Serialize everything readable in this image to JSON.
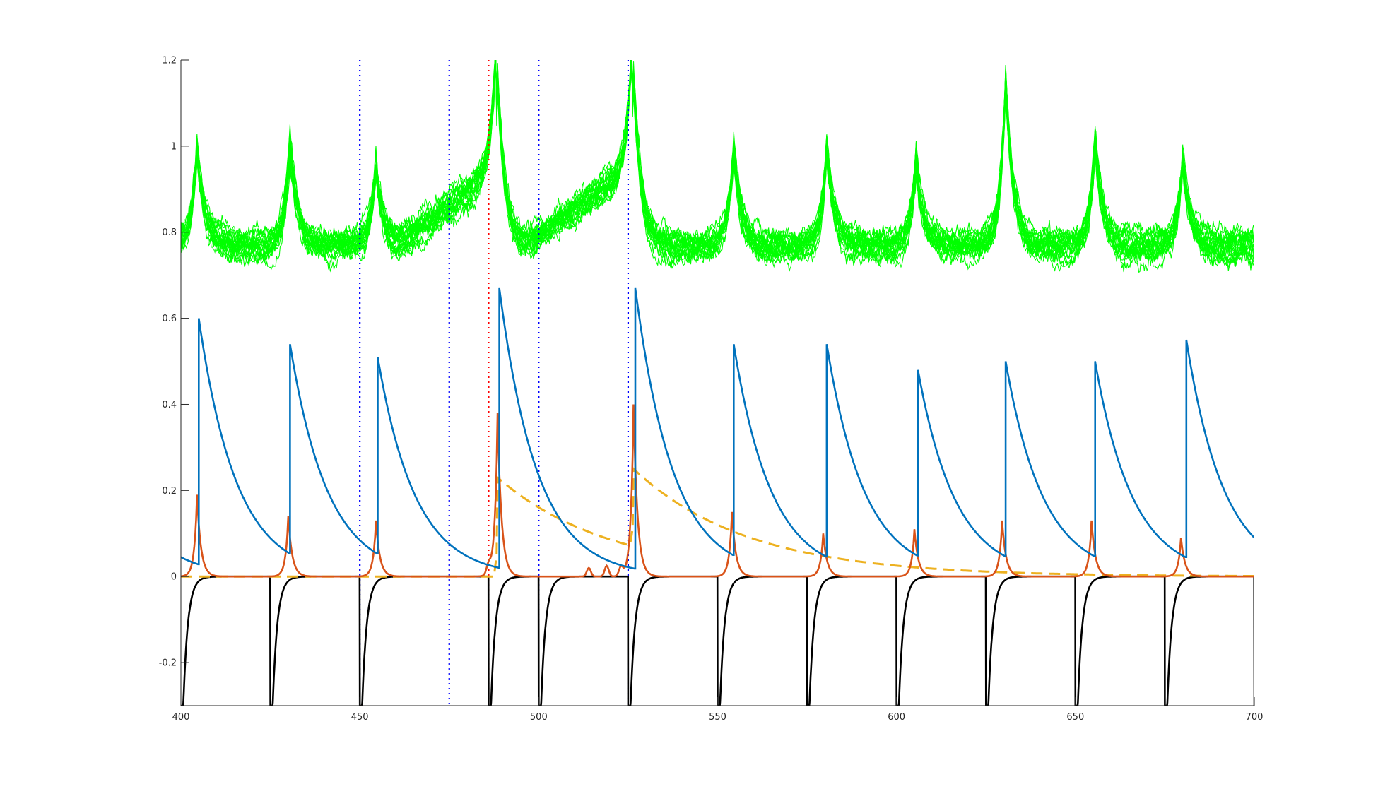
{
  "chart_data": {
    "type": "line",
    "title": "",
    "xlabel": "",
    "ylabel": "",
    "xlim": [
      400,
      700
    ],
    "ylim": [
      -0.3,
      1.2
    ],
    "grid": false,
    "legend": "none",
    "x_ticks": [
      400,
      450,
      500,
      550,
      600,
      650,
      700
    ],
    "x_tick_labels": [
      "400",
      "450",
      "500",
      "550",
      "600",
      "650",
      "700"
    ],
    "y_ticks": [
      -0.2,
      0,
      0.2,
      0.4,
      0.6,
      0.8,
      1,
      1.2
    ],
    "y_tick_labels": [
      "-0.2",
      "0",
      "0.2",
      "0.4",
      "0.6",
      "0.8",
      "1",
      "1.2"
    ],
    "colors": {
      "green": "#00ff00",
      "blue": "#0072bd",
      "orange": "#d95319",
      "yellow": "#edb120",
      "black": "#000000",
      "marker_blue": "#0000ff",
      "marker_red": "#ff0000"
    },
    "green_trace": {
      "baseline": 0.77,
      "peak_times": [
        404.5,
        430.5,
        454.5,
        488.5,
        526.5,
        554.5,
        580.5,
        605.5,
        630.5,
        655.5,
        680
      ],
      "peak_heights": [
        1.02,
        1.04,
        0.98,
        1.2,
        1.2,
        1.03,
        1.02,
        0.99,
        1.2,
        1.04,
        0.99
      ],
      "ramp_intervals": [
        [
          460,
          488
        ],
        [
          495,
          526
        ]
      ],
      "ramp_to": 0.94,
      "n_traces": 20
    },
    "blue_series": {
      "spikes": [
        [
          405,
          0.6
        ],
        [
          430.5,
          0.54
        ],
        [
          455,
          0.51
        ],
        [
          489,
          0.67
        ],
        [
          527,
          0.67
        ],
        [
          554.5,
          0.54
        ],
        [
          580.5,
          0.54
        ],
        [
          606,
          0.48
        ],
        [
          630.5,
          0.5
        ],
        [
          655.5,
          0.5
        ],
        [
          681,
          0.55
        ]
      ],
      "tau": 10.5,
      "start_value": 0.045
    },
    "orange_series": {
      "peaks": [
        [
          404.5,
          0.19
        ],
        [
          430,
          0.14
        ],
        [
          454.5,
          0.13
        ],
        [
          488.5,
          0.38
        ],
        [
          526.5,
          0.4
        ],
        [
          554,
          0.15
        ],
        [
          579.5,
          0.1
        ],
        [
          605,
          0.11
        ],
        [
          629.5,
          0.13
        ],
        [
          654.5,
          0.13
        ],
        [
          679.5,
          0.09
        ]
      ],
      "small_bumps": [
        [
          486,
          0.02
        ],
        [
          514,
          0.02
        ],
        [
          519,
          0.025
        ],
        [
          523,
          0.02
        ]
      ]
    },
    "yellow_series": {
      "events": [
        [
          488.5,
          0.23
        ],
        [
          526.5,
          0.18
        ]
      ],
      "tau": 32
    },
    "black_series": {
      "resets": [
        400,
        425,
        450,
        486,
        500,
        525,
        550,
        575,
        600,
        625,
        650,
        675,
        700
      ],
      "tau": 1.3
    },
    "vertical_markers": [
      {
        "x": 450,
        "color": "marker_blue"
      },
      {
        "x": 475,
        "color": "marker_blue"
      },
      {
        "x": 486,
        "color": "marker_red"
      },
      {
        "x": 500,
        "color": "marker_blue"
      },
      {
        "x": 525,
        "color": "marker_blue"
      }
    ]
  }
}
